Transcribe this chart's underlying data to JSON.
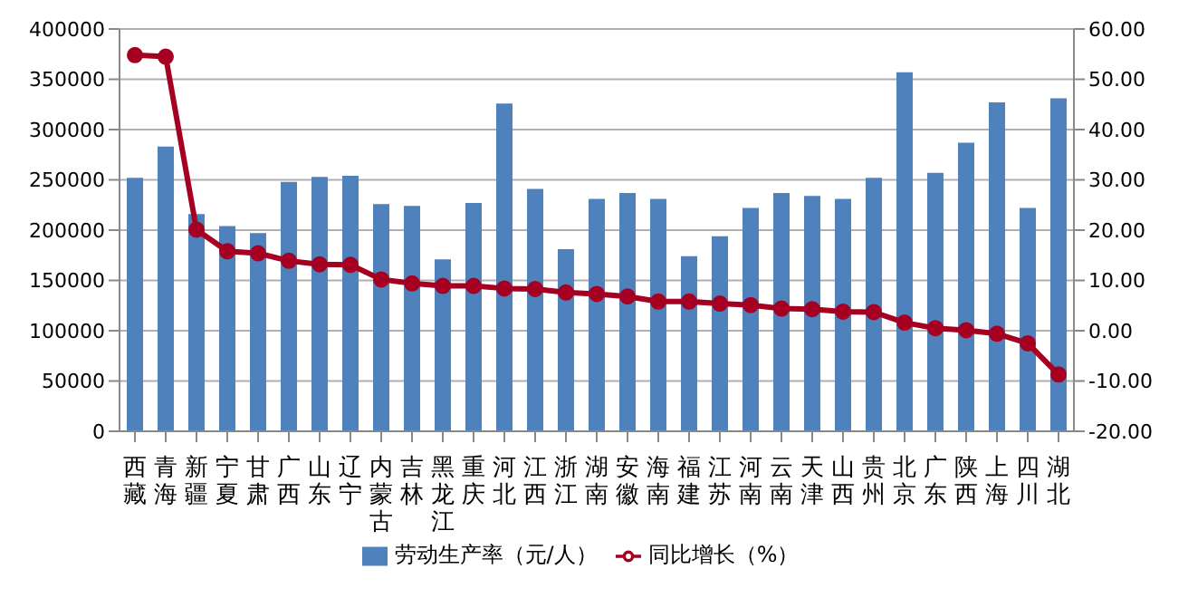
{
  "chart_data": {
    "type": "bar",
    "categories": [
      "西藏",
      "青海",
      "新疆",
      "宁夏",
      "甘肃",
      "广西",
      "山东",
      "辽宁",
      "内蒙古",
      "吉林",
      "黑龙江",
      "重庆",
      "河北",
      "江西",
      "浙江",
      "湖南",
      "安徽",
      "海南",
      "福建",
      "江苏",
      "河南",
      "云南",
      "天津",
      "山西",
      "贵州",
      "北京",
      "广东",
      "陕西",
      "上海",
      "四川",
      "湖北"
    ],
    "series": [
      {
        "name": "劳动生产率（元/人）",
        "color": "#4f81bd",
        "values": [
          252000,
          283000,
          216000,
          204000,
          197000,
          248000,
          253000,
          254000,
          226000,
          224000,
          171000,
          227000,
          326000,
          241000,
          181000,
          231000,
          237000,
          231000,
          174000,
          194000,
          222000,
          237000,
          234000,
          231000,
          252000,
          357000,
          257000,
          287000,
          327000,
          222000,
          331000
        ]
      },
      {
        "name": "同比增长（%）",
        "type": "line",
        "axis": "y2",
        "color": "#a50021",
        "values": [
          54.8,
          54.5,
          20.1,
          15.8,
          15.4,
          13.9,
          13.2,
          13.1,
          10.2,
          9.4,
          8.9,
          8.9,
          8.4,
          8.3,
          7.6,
          7.3,
          6.8,
          5.8,
          5.8,
          5.4,
          5.1,
          4.4,
          4.3,
          3.8,
          3.7,
          1.6,
          0.5,
          0.1,
          -0.6,
          -2.5,
          -8.7
        ]
      }
    ],
    "ylim": [
      0,
      400000
    ],
    "yticks": [
      0,
      50000,
      100000,
      150000,
      200000,
      250000,
      300000,
      350000,
      400000
    ],
    "y2lim": [
      -20,
      60
    ],
    "y2ticks": [
      {
        "value": -20,
        "label": "-20.00"
      },
      {
        "value": -10,
        "label": "-10.00"
      },
      {
        "value": 0,
        "label": "0.00"
      },
      {
        "value": 10,
        "label": "10.00"
      },
      {
        "value": 20,
        "label": "20.00"
      },
      {
        "value": 30,
        "label": "30.00"
      },
      {
        "value": 40,
        "label": "40.00"
      },
      {
        "value": 50,
        "label": "50.00"
      },
      {
        "value": 60,
        "label": "60.00"
      }
    ],
    "grid": "y",
    "legend": "bottom",
    "marker": "circle"
  }
}
